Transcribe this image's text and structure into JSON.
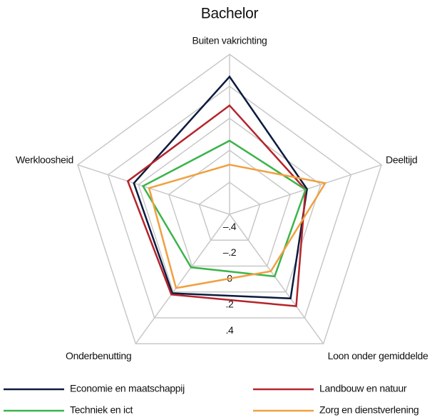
{
  "chart_data": {
    "type": "radar",
    "title": "Bachelor",
    "categories": [
      "Buiten vakrichting",
      "Deeltijd",
      "Loon onder gemiddelde",
      "Onderbenutting",
      "Werkloosheid"
    ],
    "series": [
      {
        "name": "Economie en maatschappij",
        "color": "#0d1b3e",
        "values": [
          0.26,
          -0.09,
          0.05,
          0.01,
          0.03
        ]
      },
      {
        "name": "Landbouw en natuur",
        "color": "#b5242b",
        "values": [
          0.08,
          -0.1,
          0.11,
          0.02,
          0.07
        ]
      },
      {
        "name": "Techniek en ict",
        "color": "#3cb44b",
        "values": [
          -0.14,
          -0.1,
          -0.12,
          -0.19,
          -0.03
        ]
      },
      {
        "name": "Zorg en dienstverlening",
        "color": "#f0a040",
        "values": [
          -0.29,
          0.03,
          -0.16,
          -0.03,
          -0.07
        ]
      }
    ],
    "ylim": [
      -0.6,
      0.4
    ],
    "yticks": [
      {
        "value": -0.4,
        "label": "–.4"
      },
      {
        "value": -0.2,
        "label": "–.2"
      },
      0,
      {
        "value": 0.2,
        "label": ".2"
      },
      {
        "value": 0.4,
        "label": ".4"
      }
    ],
    "grid": true
  }
}
